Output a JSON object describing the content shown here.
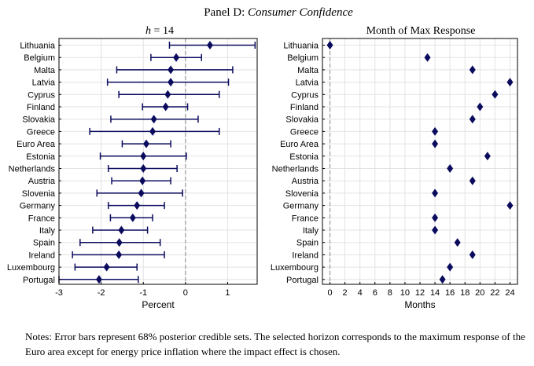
{
  "figure": {
    "title_prefix": "Panel D: ",
    "title_italic": "Consumer Confidence",
    "notes": "Notes: Error bars represent 68% posterior credible sets. The selected horizon corresponds to the maximum response of the Euro area except for energy price inflation where the impact effect is chosen."
  },
  "colors": {
    "marker": "#0b0b5e",
    "grid": "#e3e3e3",
    "zero_line": "#9a9a9a",
    "axis": "#000000"
  },
  "chart_data": [
    {
      "type": "scatter",
      "panel": "left",
      "title_math_var": "h",
      "title_math_rest": " = 14",
      "xlabel": "Percent",
      "ylabel": "",
      "xlim": [
        -3,
        1.7
      ],
      "xticks": [
        -3,
        -2,
        -1,
        0,
        1
      ],
      "xtick_labels": [
        "-3",
        "-2",
        "-1",
        "0",
        "1"
      ],
      "grid": true,
      "zero_line": 0,
      "categories": [
        "Lithuania",
        "Belgium",
        "Malta",
        "Latvia",
        "Cyprus",
        "Finland",
        "Slovakia",
        "Greece",
        "Euro Area",
        "Estonia",
        "Netherlands",
        "Austria",
        "Slovenia",
        "Germany",
        "France",
        "Italy",
        "Spain",
        "Ireland",
        "Luxembourg",
        "Portugal"
      ],
      "values": [
        0.58,
        -0.22,
        -0.35,
        -0.35,
        -0.42,
        -0.47,
        -0.75,
        -0.78,
        -0.93,
        -1.0,
        -1.0,
        -1.02,
        -1.05,
        -1.15,
        -1.25,
        -1.52,
        -1.57,
        -1.58,
        -1.87,
        -2.05
      ],
      "lower": [
        -0.38,
        -0.82,
        -1.63,
        -1.85,
        -1.58,
        -1.02,
        -1.77,
        -2.27,
        -1.5,
        -2.02,
        -1.83,
        -1.75,
        -2.1,
        -1.83,
        -1.78,
        -2.2,
        -2.5,
        -2.68,
        -2.62,
        -3.0
      ],
      "upper": [
        1.65,
        0.38,
        1.12,
        1.02,
        0.8,
        0.05,
        0.3,
        0.8,
        -0.35,
        0.02,
        -0.2,
        -0.35,
        -0.07,
        -0.5,
        -0.78,
        -0.9,
        -0.6,
        -0.5,
        -1.15,
        -1.12
      ]
    },
    {
      "type": "scatter",
      "panel": "right",
      "title": "Month of Max Response",
      "xlabel": "Months",
      "ylabel": "",
      "xlim": [
        -1,
        25
      ],
      "xticks": [
        0,
        2,
        4,
        6,
        8,
        10,
        12,
        14,
        16,
        18,
        20,
        22,
        24
      ],
      "xtick_labels": [
        "0",
        "2",
        "4",
        "6",
        "8",
        "10",
        "12",
        "14",
        "16",
        "18",
        "20",
        "22",
        "24"
      ],
      "grid": true,
      "zero_line": 0,
      "categories": [
        "Lithuania",
        "Belgium",
        "Malta",
        "Latvia",
        "Cyprus",
        "Finland",
        "Slovakia",
        "Greece",
        "Euro Area",
        "Estonia",
        "Netherlands",
        "Austria",
        "Slovenia",
        "Germany",
        "France",
        "Italy",
        "Spain",
        "Ireland",
        "Luxembourg",
        "Portugal"
      ],
      "values": [
        0,
        13,
        19,
        24,
        22,
        20,
        19,
        14,
        14,
        21,
        16,
        19,
        14,
        24,
        14,
        14,
        17,
        19,
        16,
        15
      ]
    }
  ]
}
